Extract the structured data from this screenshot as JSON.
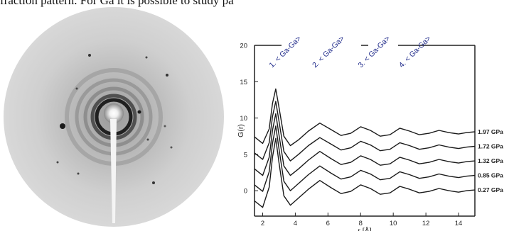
{
  "header": {
    "text": "fraction pattern. For Ga it is possible to study pa"
  },
  "diffraction_image": {
    "description_icon": "diffraction-pattern-icon"
  },
  "chart_data": {
    "type": "line",
    "xlabel": "r [Å]",
    "ylabel": "G(r)",
    "xlim": [
      1.5,
      15
    ],
    "ylim": [
      -3.5,
      20
    ],
    "xticks": [
      2,
      4,
      6,
      8,
      10,
      12,
      14
    ],
    "yticks": [
      0,
      5,
      10,
      15,
      20
    ],
    "annotations": [
      "1. < Ga-Ga>",
      "2. < Ga-Ga>",
      "3. < Ga-Ga>",
      "4. < Ga-Ga>"
    ],
    "annotation_x": [
      2.75,
      5.4,
      8.2,
      10.7
    ],
    "annotation_color": "#1f2a8a",
    "series": [
      {
        "name": "1.97 GPa",
        "offset": 8.0,
        "x": [
          1.5,
          2.0,
          2.4,
          2.6,
          2.8,
          3.0,
          3.3,
          3.7,
          4.2,
          4.8,
          5.5,
          6.2,
          6.8,
          7.4,
          8.0,
          8.6,
          9.2,
          9.8,
          10.4,
          11.0,
          11.6,
          12.2,
          12.8,
          13.4,
          14.0,
          14.5,
          15.0
        ],
        "y": [
          -0.6,
          -1.5,
          0.5,
          4.0,
          6.0,
          3.5,
          -0.5,
          -1.8,
          -1.0,
          0.2,
          1.3,
          0.4,
          -0.4,
          -0.1,
          0.8,
          0.3,
          -0.5,
          -0.3,
          0.6,
          0.2,
          -0.3,
          -0.1,
          0.3,
          0.0,
          -0.2,
          0.0,
          0.1
        ]
      },
      {
        "name": "1.72 GPa",
        "offset": 6.0,
        "x": [
          1.5,
          2.0,
          2.4,
          2.6,
          2.8,
          3.0,
          3.3,
          3.7,
          4.2,
          4.8,
          5.5,
          6.2,
          6.8,
          7.4,
          8.0,
          8.6,
          9.2,
          9.8,
          10.4,
          11.0,
          11.6,
          12.2,
          12.8,
          13.4,
          14.0,
          14.5,
          15.0
        ],
        "y": [
          -0.8,
          -1.7,
          0.6,
          4.2,
          6.3,
          3.6,
          -0.6,
          -1.9,
          -1.0,
          0.2,
          1.3,
          0.4,
          -0.4,
          -0.1,
          0.8,
          0.3,
          -0.5,
          -0.3,
          0.6,
          0.2,
          -0.3,
          -0.1,
          0.3,
          0.0,
          -0.2,
          0.0,
          0.1
        ]
      },
      {
        "name": "1.32 GPa",
        "offset": 4.0,
        "x": [
          1.5,
          2.0,
          2.4,
          2.6,
          2.8,
          3.0,
          3.3,
          3.7,
          4.2,
          4.8,
          5.5,
          6.2,
          6.8,
          7.4,
          8.0,
          8.6,
          9.2,
          9.8,
          10.4,
          11.0,
          11.6,
          12.2,
          12.8,
          13.4,
          14.0,
          14.5,
          15.0
        ],
        "y": [
          -1.0,
          -1.9,
          0.6,
          4.3,
          6.6,
          3.7,
          -0.6,
          -1.9,
          -1.0,
          0.2,
          1.4,
          0.4,
          -0.4,
          -0.1,
          0.8,
          0.3,
          -0.5,
          -0.3,
          0.6,
          0.2,
          -0.3,
          -0.1,
          0.3,
          0.0,
          -0.2,
          0.0,
          0.1
        ]
      },
      {
        "name": "0.85 GPa",
        "offset": 2.0,
        "x": [
          1.5,
          2.0,
          2.4,
          2.6,
          2.8,
          3.0,
          3.3,
          3.7,
          4.2,
          4.8,
          5.5,
          6.2,
          6.8,
          7.4,
          8.0,
          8.6,
          9.2,
          9.8,
          10.4,
          11.0,
          11.6,
          12.2,
          12.8,
          13.4,
          14.0,
          14.5,
          15.0
        ],
        "y": [
          -1.2,
          -2.1,
          0.6,
          4.5,
          6.9,
          3.8,
          -0.7,
          -2.0,
          -1.0,
          0.2,
          1.4,
          0.4,
          -0.4,
          -0.1,
          0.8,
          0.3,
          -0.5,
          -0.3,
          0.6,
          0.2,
          -0.3,
          -0.1,
          0.3,
          0.0,
          -0.2,
          0.0,
          0.1
        ]
      },
      {
        "name": "0.27 GPa",
        "offset": 0.0,
        "x": [
          1.5,
          2.0,
          2.4,
          2.6,
          2.8,
          3.0,
          3.3,
          3.7,
          4.2,
          4.8,
          5.5,
          6.2,
          6.8,
          7.4,
          8.0,
          8.6,
          9.2,
          9.8,
          10.4,
          11.0,
          11.6,
          12.2,
          12.8,
          13.4,
          14.0,
          14.5,
          15.0
        ],
        "y": [
          -1.4,
          -2.3,
          0.5,
          4.6,
          7.2,
          3.9,
          -0.7,
          -2.0,
          -1.0,
          0.2,
          1.4,
          0.4,
          -0.4,
          -0.1,
          0.8,
          0.3,
          -0.5,
          -0.3,
          0.6,
          0.2,
          -0.3,
          -0.1,
          0.3,
          0.0,
          -0.2,
          0.0,
          0.1
        ]
      }
    ]
  }
}
